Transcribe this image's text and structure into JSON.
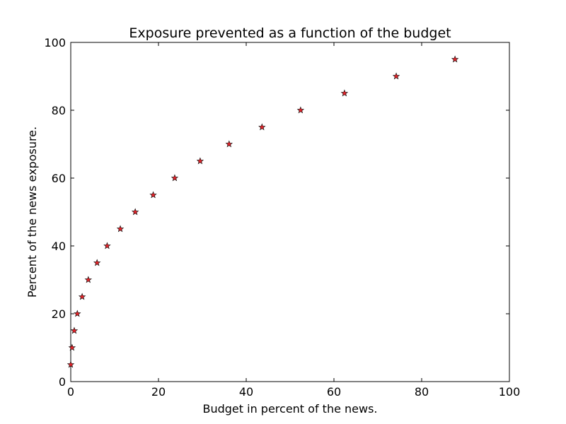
{
  "chart_data": {
    "type": "scatter",
    "title": "Exposure prevented as a function of the budget",
    "xlabel": "Budget in percent of the news.",
    "ylabel": "Percent of the news exposure.",
    "xlim": [
      0,
      100
    ],
    "ylim": [
      0,
      100
    ],
    "xticks": [
      "0",
      "20",
      "40",
      "60",
      "80",
      "100"
    ],
    "yticks": [
      "0",
      "20",
      "40",
      "60",
      "80",
      "100"
    ],
    "grid": false,
    "marker": "star",
    "marker_color": "#e8252b",
    "series": [
      {
        "x": [
          0.0,
          0.3,
          0.8,
          1.5,
          2.6,
          4.0,
          6.0,
          8.3,
          11.3,
          14.7,
          18.8,
          23.7,
          29.5,
          36.1,
          43.6,
          52.4,
          62.4,
          74.2,
          87.6
        ],
        "y": [
          5,
          10,
          15,
          20,
          25,
          30,
          35,
          40,
          45,
          50,
          55,
          60,
          65,
          70,
          75,
          80,
          85,
          90,
          95
        ]
      }
    ]
  }
}
